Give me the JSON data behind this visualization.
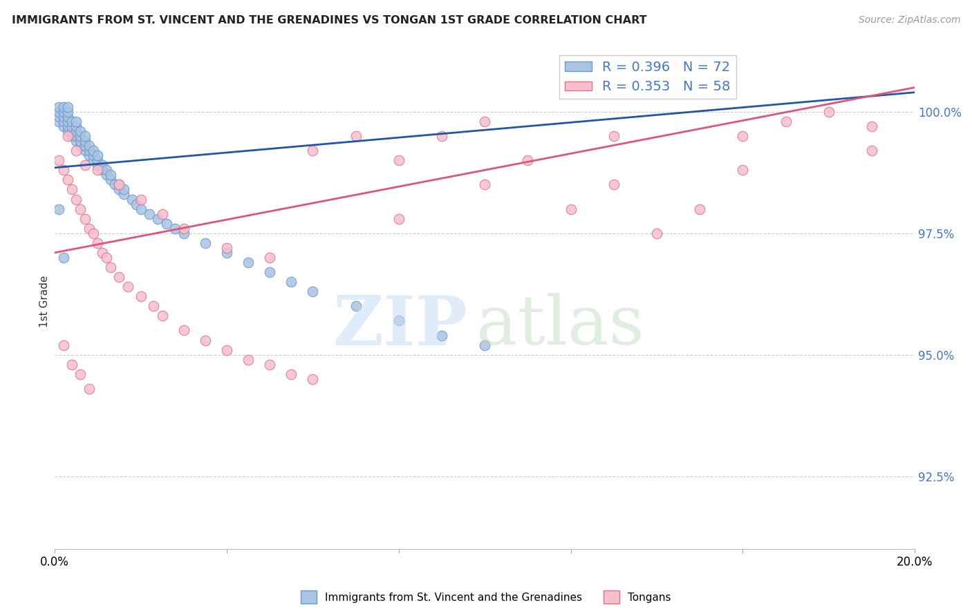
{
  "title": "IMMIGRANTS FROM ST. VINCENT AND THE GRENADINES VS TONGAN 1ST GRADE CORRELATION CHART",
  "source": "Source: ZipAtlas.com",
  "ylabel": "1st Grade",
  "yticks": [
    92.5,
    95.0,
    97.5,
    100.0
  ],
  "ytick_labels": [
    "92.5%",
    "95.0%",
    "97.5%",
    "100.0%"
  ],
  "xmin": 0.0,
  "xmax": 0.2,
  "ymin": 91.0,
  "ymax": 101.2,
  "blue_color": "#aac4e2",
  "blue_edge": "#6699cc",
  "blue_line_color": "#2255aa",
  "pink_color": "#f5bfcc",
  "pink_edge": "#e07090",
  "pink_line_color": "#dd5577",
  "legend_text_color": "#4477cc",
  "ytick_color": "#4477cc",
  "blue_x": [
    0.001,
    0.001,
    0.001,
    0.001,
    0.002,
    0.002,
    0.002,
    0.002,
    0.002,
    0.003,
    0.003,
    0.003,
    0.003,
    0.003,
    0.003,
    0.004,
    0.004,
    0.004,
    0.004,
    0.005,
    0.005,
    0.005,
    0.005,
    0.005,
    0.006,
    0.006,
    0.006,
    0.006,
    0.007,
    0.007,
    0.007,
    0.007,
    0.008,
    0.008,
    0.008,
    0.009,
    0.009,
    0.009,
    0.01,
    0.01,
    0.01,
    0.011,
    0.011,
    0.012,
    0.012,
    0.013,
    0.013,
    0.014,
    0.015,
    0.015,
    0.016,
    0.016,
    0.018,
    0.019,
    0.02,
    0.022,
    0.024,
    0.026,
    0.028,
    0.03,
    0.035,
    0.04,
    0.045,
    0.05,
    0.055,
    0.06,
    0.07,
    0.08,
    0.09,
    0.1,
    0.001,
    0.002
  ],
  "blue_y": [
    99.8,
    99.9,
    100.0,
    100.1,
    99.7,
    99.8,
    99.9,
    100.0,
    100.1,
    99.6,
    99.7,
    99.8,
    99.9,
    100.0,
    100.1,
    99.5,
    99.6,
    99.7,
    99.8,
    99.4,
    99.5,
    99.6,
    99.7,
    99.8,
    99.3,
    99.4,
    99.5,
    99.6,
    99.2,
    99.3,
    99.4,
    99.5,
    99.1,
    99.2,
    99.3,
    99.0,
    99.1,
    99.2,
    98.9,
    99.0,
    99.1,
    98.8,
    98.9,
    98.7,
    98.8,
    98.6,
    98.7,
    98.5,
    98.4,
    98.5,
    98.3,
    98.4,
    98.2,
    98.1,
    98.0,
    97.9,
    97.8,
    97.7,
    97.6,
    97.5,
    97.3,
    97.1,
    96.9,
    96.7,
    96.5,
    96.3,
    96.0,
    95.7,
    95.4,
    95.2,
    98.0,
    97.0
  ],
  "pink_x": [
    0.001,
    0.002,
    0.003,
    0.004,
    0.005,
    0.006,
    0.007,
    0.008,
    0.009,
    0.01,
    0.011,
    0.012,
    0.013,
    0.015,
    0.017,
    0.02,
    0.023,
    0.025,
    0.03,
    0.035,
    0.04,
    0.045,
    0.05,
    0.055,
    0.06,
    0.07,
    0.08,
    0.09,
    0.1,
    0.11,
    0.12,
    0.13,
    0.14,
    0.15,
    0.16,
    0.17,
    0.18,
    0.19,
    0.003,
    0.005,
    0.007,
    0.01,
    0.015,
    0.02,
    0.025,
    0.03,
    0.04,
    0.05,
    0.06,
    0.08,
    0.1,
    0.13,
    0.16,
    0.19,
    0.002,
    0.004,
    0.006,
    0.008
  ],
  "pink_y": [
    99.0,
    98.8,
    98.6,
    98.4,
    98.2,
    98.0,
    97.8,
    97.6,
    97.5,
    97.3,
    97.1,
    97.0,
    96.8,
    96.6,
    96.4,
    96.2,
    96.0,
    95.8,
    95.5,
    95.3,
    95.1,
    94.9,
    94.8,
    94.6,
    94.5,
    99.5,
    99.0,
    99.5,
    98.5,
    99.0,
    98.0,
    98.5,
    97.5,
    98.0,
    99.5,
    99.8,
    100.0,
    99.7,
    99.5,
    99.2,
    98.9,
    98.8,
    98.5,
    98.2,
    97.9,
    97.6,
    97.2,
    97.0,
    99.2,
    97.8,
    99.8,
    99.5,
    98.8,
    99.2,
    95.2,
    94.8,
    94.6,
    94.3
  ],
  "blue_line_x0": 0.0,
  "blue_line_x1": 0.2,
  "blue_line_y0": 98.85,
  "blue_line_y1": 100.4,
  "pink_line_x0": 0.0,
  "pink_line_x1": 0.2,
  "pink_line_y0": 97.1,
  "pink_line_y1": 100.5
}
